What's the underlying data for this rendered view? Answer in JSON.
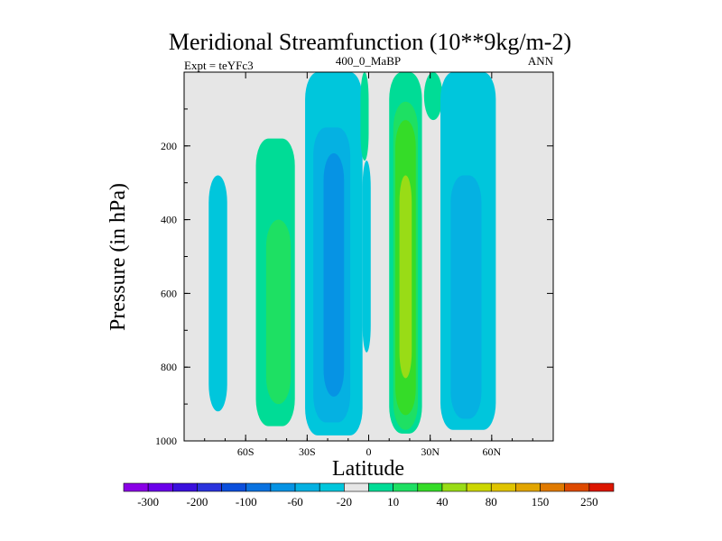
{
  "chart_data": {
    "type": "heatmap",
    "title": "Meridional Streamfunction (10**9kg/m-2)",
    "left_label": "Expt = teYFc3",
    "center_label": "400_0_MaBP",
    "right_label": "ANN",
    "xlabel": "Latitude",
    "ylabel": "Pressure (in hPa)",
    "xlim": [
      -90,
      90
    ],
    "ylim": [
      1000,
      0
    ],
    "x_ticks": [
      {
        "value": -60,
        "label": "60S"
      },
      {
        "value": -30,
        "label": "30S"
      },
      {
        "value": 0,
        "label": "0"
      },
      {
        "value": 30,
        "label": "30N"
      },
      {
        "value": 60,
        "label": "60N"
      }
    ],
    "y_ticks": [
      {
        "value": 200,
        "label": "200"
      },
      {
        "value": 400,
        "label": "400"
      },
      {
        "value": 600,
        "label": "600"
      },
      {
        "value": 800,
        "label": "800"
      },
      {
        "value": 1000,
        "label": "1000"
      }
    ],
    "colorbar": {
      "levels": [
        -300,
        -250,
        -200,
        -150,
        -100,
        -80,
        -60,
        -40,
        -20,
        -10,
        10,
        20,
        40,
        60,
        80,
        100,
        150,
        200,
        250,
        300
      ],
      "labels": [
        {
          "value": -300,
          "label": "-300"
        },
        {
          "value": -200,
          "label": "-200"
        },
        {
          "value": -100,
          "label": "-100"
        },
        {
          "value": -60,
          "label": "-60"
        },
        {
          "value": -20,
          "label": "-20"
        },
        {
          "value": 10,
          "label": "10"
        },
        {
          "value": 40,
          "label": "40"
        },
        {
          "value": 80,
          "label": "80"
        },
        {
          "value": 150,
          "label": "150"
        },
        {
          "value": 250,
          "label": "250"
        }
      ],
      "colors": [
        "#8a00e6",
        "#6a00ea",
        "#3a10dd",
        "#2a33dd",
        "#0b4fdc",
        "#0a72e0",
        "#0693e4",
        "#05b1e2",
        "#00c6dc",
        "#e6e6e6",
        "#00dc96",
        "#1ee063",
        "#35dc28",
        "#99dc16",
        "#ccd700",
        "#e0c400",
        "#e2a500",
        "#e07a00",
        "#de4a00",
        "#dc1600"
      ]
    },
    "regions": [
      {
        "lat_min": -78,
        "lat_max": -69,
        "p_top": 280,
        "p_bottom": 920,
        "value": -15
      },
      {
        "lat_min": -55,
        "lat_max": -36,
        "p_top": 180,
        "p_bottom": 960,
        "value": 15
      },
      {
        "lat_min": -50,
        "lat_max": -38,
        "p_top": 400,
        "p_bottom": 900,
        "value": 30
      },
      {
        "lat_min": -31,
        "lat_max": -3,
        "p_top": 0,
        "p_bottom": 985,
        "value": -15
      },
      {
        "lat_min": -27,
        "lat_max": -9,
        "p_top": 150,
        "p_bottom": 950,
        "value": -30
      },
      {
        "lat_min": -22,
        "lat_max": -12,
        "p_top": 220,
        "p_bottom": 880,
        "value": -50
      },
      {
        "lat_min": -4,
        "lat_max": 0,
        "p_top": 0,
        "p_bottom": 240,
        "value": 15
      },
      {
        "lat_min": -3,
        "lat_max": 1,
        "p_top": 240,
        "p_bottom": 760,
        "value": -15
      },
      {
        "lat_min": 10,
        "lat_max": 26,
        "p_top": 0,
        "p_bottom": 980,
        "value": 15
      },
      {
        "lat_min": 12,
        "lat_max": 24,
        "p_top": 80,
        "p_bottom": 970,
        "value": 30
      },
      {
        "lat_min": 13,
        "lat_max": 23,
        "p_top": 130,
        "p_bottom": 930,
        "value": 50
      },
      {
        "lat_min": 15,
        "lat_max": 21,
        "p_top": 280,
        "p_bottom": 830,
        "value": 70
      },
      {
        "lat_min": 27,
        "lat_max": 36,
        "p_top": 0,
        "p_bottom": 130,
        "value": 15
      },
      {
        "lat_min": 35,
        "lat_max": 62,
        "p_top": 0,
        "p_bottom": 970,
        "value": -15
      },
      {
        "lat_min": 40,
        "lat_max": 55,
        "p_top": 280,
        "p_bottom": 940,
        "value": -30
      }
    ]
  }
}
